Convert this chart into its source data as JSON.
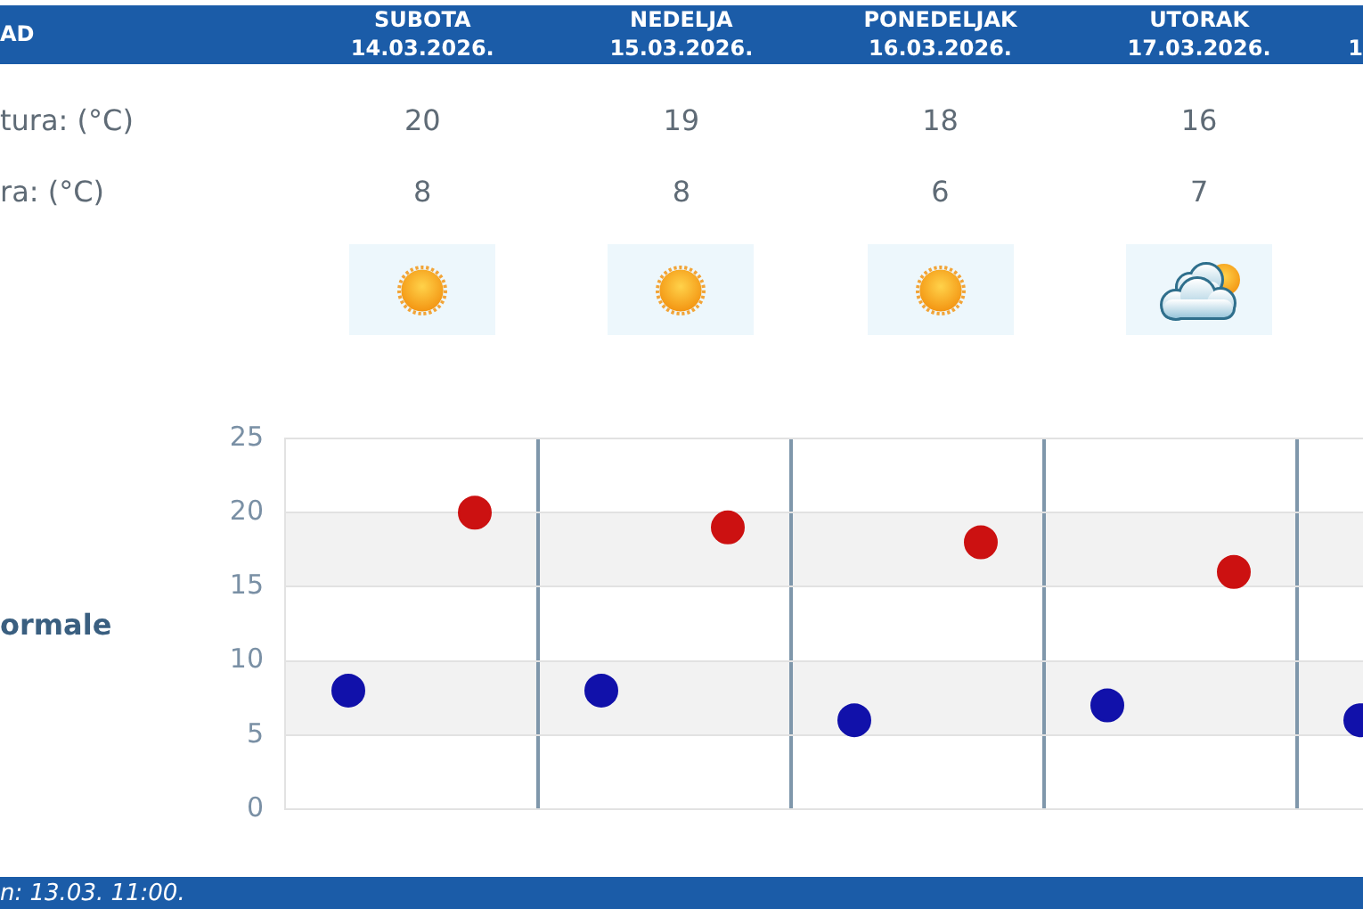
{
  "chart_data": [
    {
      "type": "other",
      "annotations": [
        "AD"
      ],
      "categories": [
        "SUBOTA\n14.03.2026.",
        "NEDELJA\n15.03.2026.",
        "PONEDELJAK\n16.03.2026.",
        "UTORAK\n17.03.2026.",
        "1"
      ],
      "series": [
        {
          "name": "tura: (°C)",
          "color": "#5f6b76",
          "values": [
            20,
            19,
            18,
            16,
            null
          ]
        },
        {
          "name": "ra: (°C)",
          "color": "#5f6b76",
          "values": [
            8,
            8,
            6,
            7,
            null
          ]
        }
      ],
      "data_labels": true
    },
    {
      "type": "scatter",
      "ylabel": "ormale",
      "annotations": [
        "n: 13.03. 11:00."
      ],
      "categories": [
        null,
        null,
        null,
        null,
        null,
        null,
        null,
        null,
        null
      ],
      "series": [
        {
          "color": "#cc1111",
          "values": [
            null,
            20,
            null,
            19,
            null,
            18,
            null,
            16,
            null
          ]
        },
        {
          "color": "#1111aa",
          "values": [
            8,
            null,
            8,
            null,
            6,
            null,
            7,
            null,
            6
          ]
        }
      ],
      "ylim": [
        0,
        25
      ],
      "yticks": [
        0,
        5,
        10,
        15,
        20,
        25
      ],
      "grid": true,
      "marker": "circle"
    }
  ]
}
